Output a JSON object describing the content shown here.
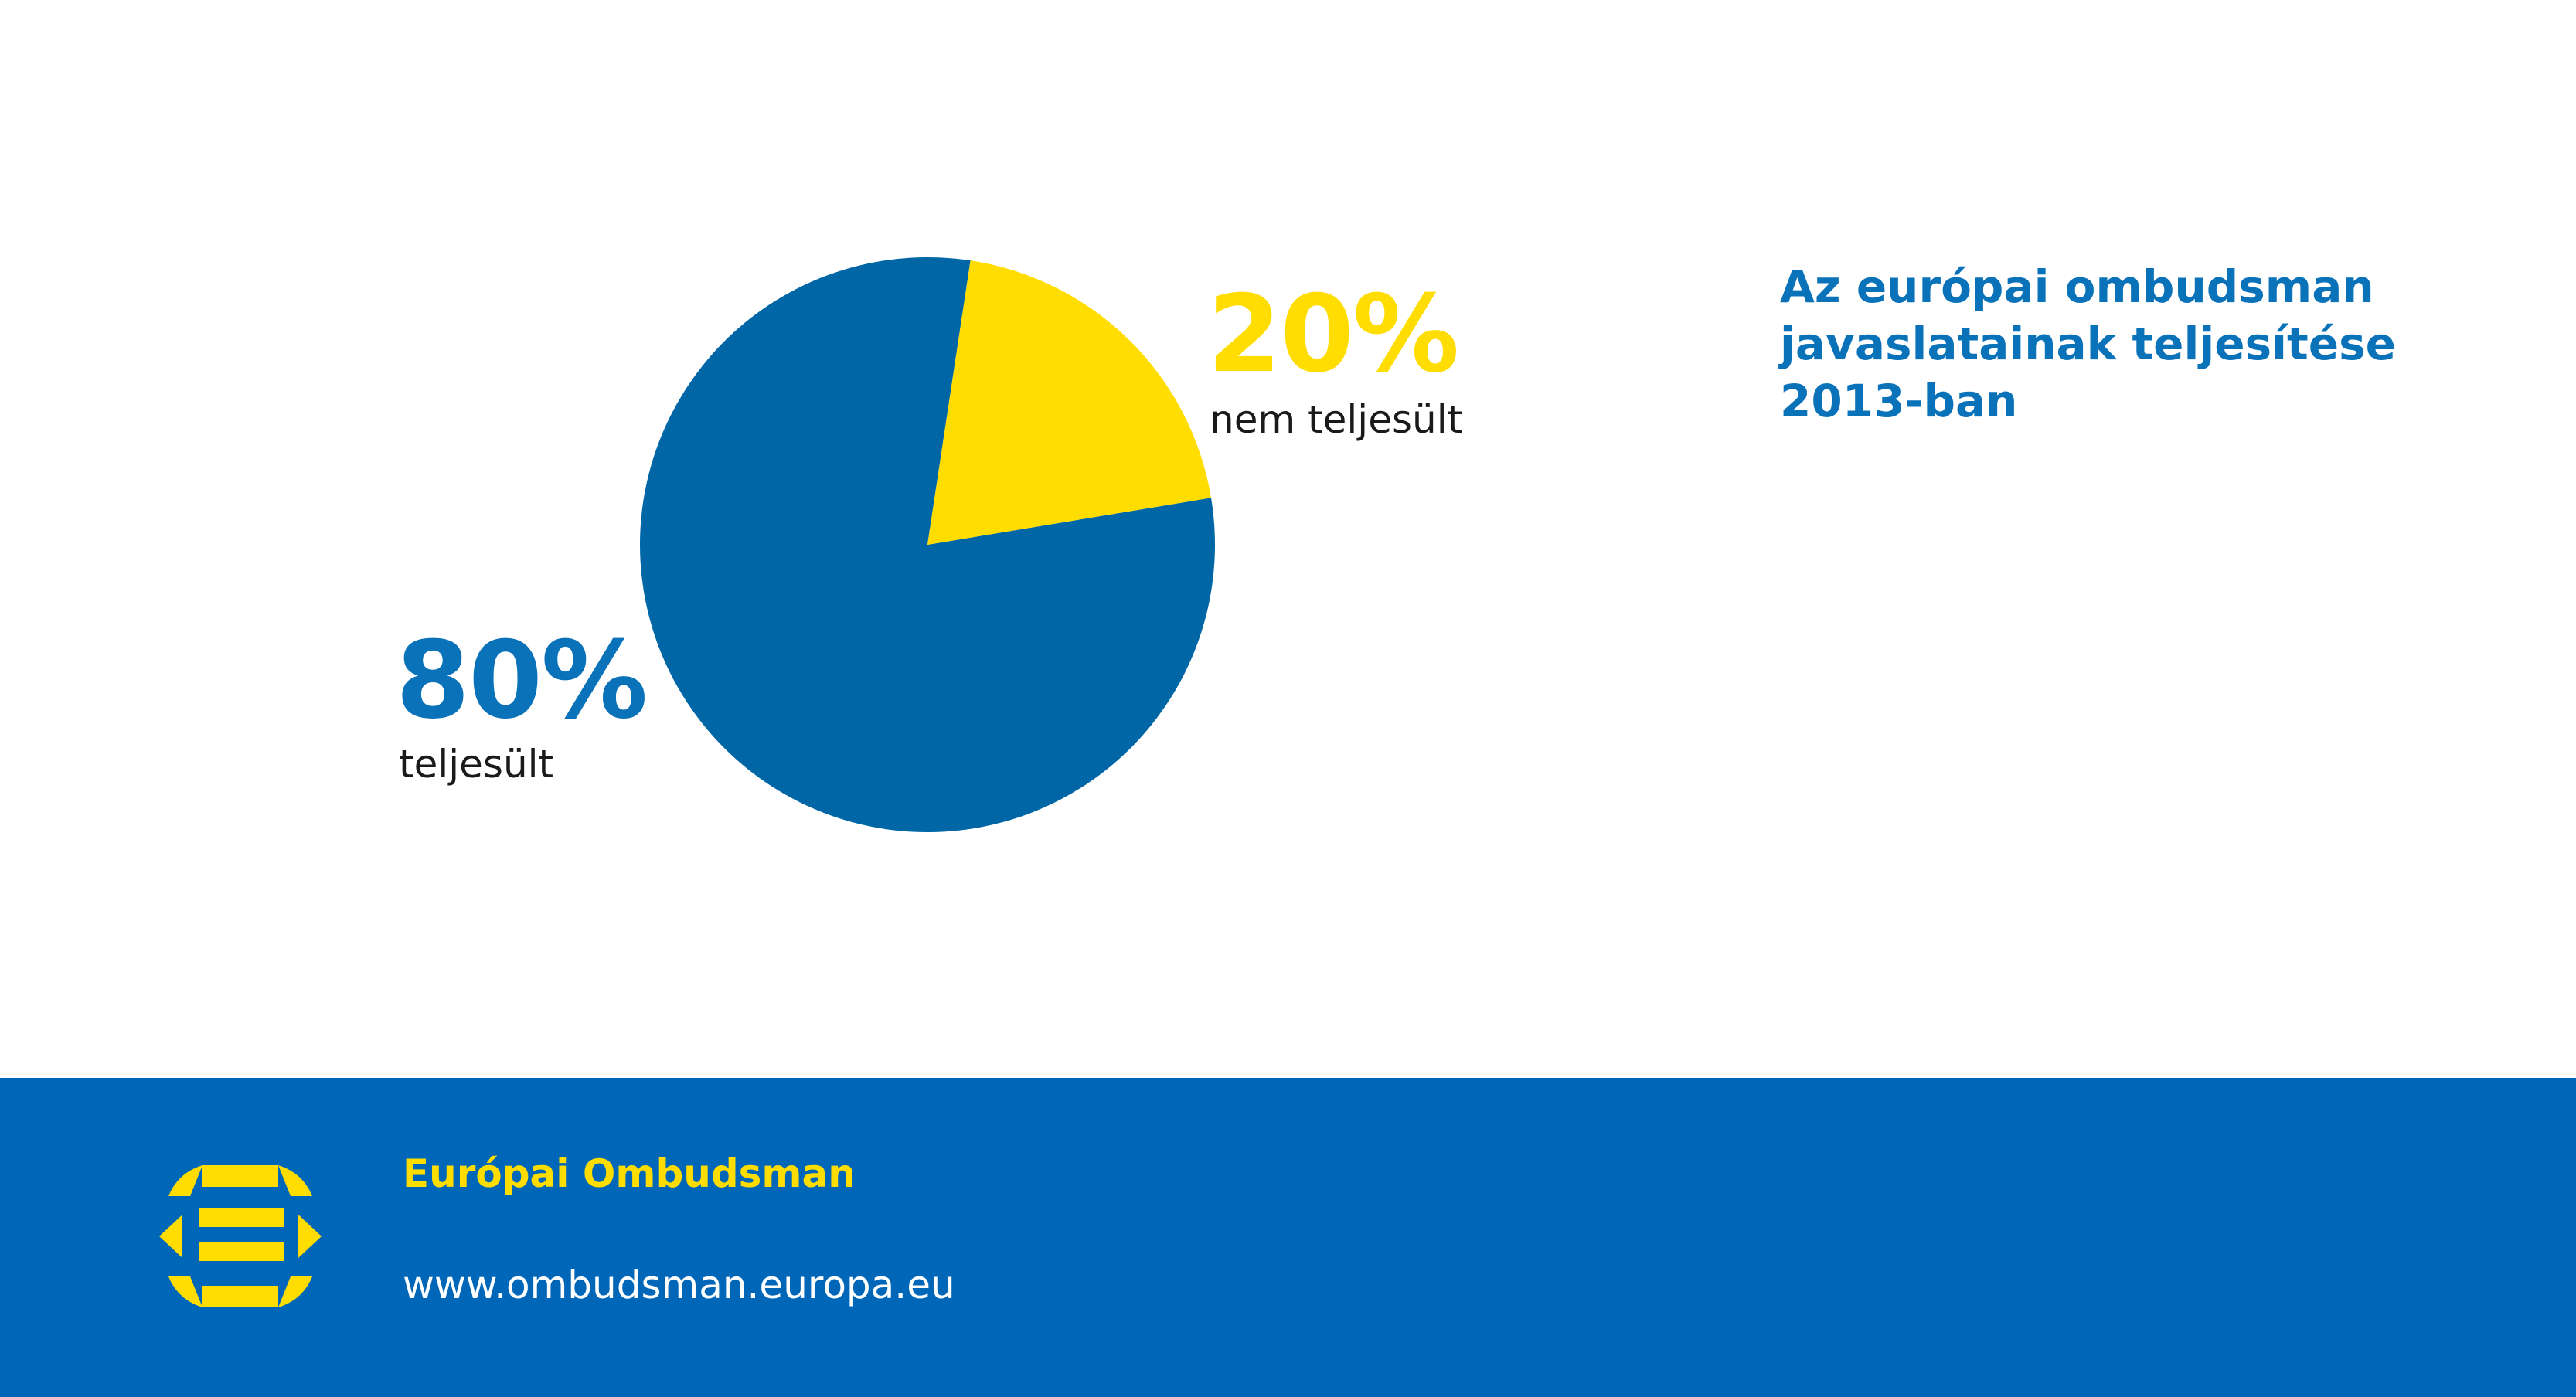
{
  "chart_data": {
    "type": "pie",
    "title": "Az európai ombudsman javaslatainak teljesítése 2013-ban",
    "categories": [
      "teljesült",
      "nem teljesült"
    ],
    "values": [
      80,
      20
    ],
    "value_labels": [
      "80%",
      "20%"
    ],
    "colors": [
      "#0066a6",
      "#ffdd00"
    ],
    "label_colors": [
      "#0a72b9",
      "#ffdd00"
    ],
    "legend": "none"
  },
  "footer": {
    "organization": "Európai Ombudsman",
    "url": "www.ombudsman.europa.eu",
    "background": "#0066b8",
    "logo_icon": "european-ombudsman-logo-icon"
  }
}
